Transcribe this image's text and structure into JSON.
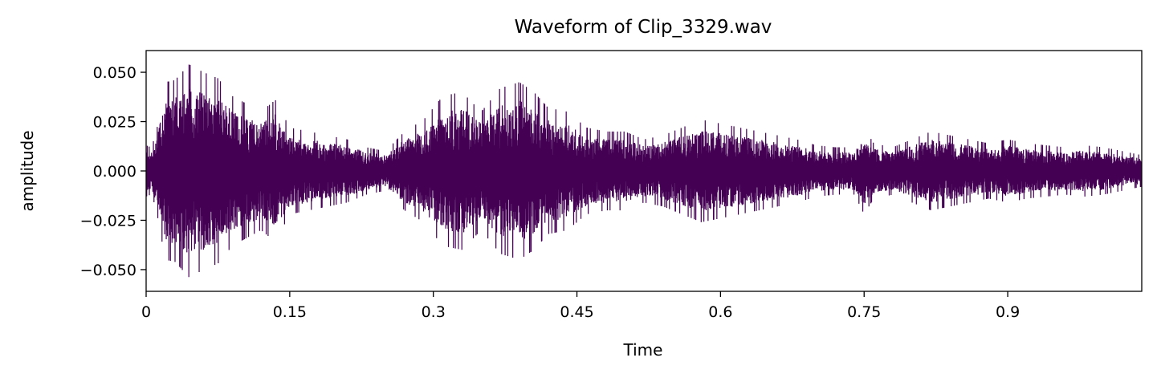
{
  "chart_data": {
    "type": "line",
    "title": "Waveform of Clip_3329.wav",
    "xlabel": "Time",
    "ylabel": "amplitude",
    "xlim": [
      0,
      1.04
    ],
    "ylim": [
      -0.061,
      0.061
    ],
    "x_ticks": [
      0,
      0.15,
      0.3,
      0.45,
      0.6,
      0.75,
      0.9
    ],
    "x_tick_labels": [
      "0",
      "0.15",
      "0.3",
      "0.45",
      "0.6",
      "0.75",
      "0.9"
    ],
    "y_ticks": [
      0.05,
      0.025,
      0.0,
      -0.025,
      -0.05
    ],
    "y_tick_labels": [
      "0.050",
      "0.025",
      "0.000",
      "−0.025",
      "−0.050"
    ],
    "grid": false,
    "legend": "none",
    "series_color": "#440154",
    "envelope": {
      "time": [
        0,
        0.005,
        0.01,
        0.02,
        0.03,
        0.045,
        0.06,
        0.075,
        0.09,
        0.105,
        0.12,
        0.135,
        0.15,
        0.17,
        0.19,
        0.21,
        0.23,
        0.25,
        0.27,
        0.29,
        0.31,
        0.33,
        0.35,
        0.37,
        0.39,
        0.405,
        0.42,
        0.44,
        0.46,
        0.48,
        0.5,
        0.52,
        0.54,
        0.56,
        0.58,
        0.6,
        0.62,
        0.64,
        0.66,
        0.68,
        0.7,
        0.72,
        0.74,
        0.75,
        0.76,
        0.78,
        0.8,
        0.82,
        0.84,
        0.86,
        0.88,
        0.9,
        0.92,
        0.94,
        0.96,
        0.98,
        1.0,
        1.02,
        1.04
      ],
      "peak": [
        0.013,
        0.012,
        0.018,
        0.045,
        0.046,
        0.054,
        0.05,
        0.047,
        0.038,
        0.034,
        0.03,
        0.036,
        0.022,
        0.02,
        0.018,
        0.016,
        0.012,
        0.01,
        0.02,
        0.026,
        0.038,
        0.04,
        0.03,
        0.042,
        0.045,
        0.04,
        0.032,
        0.03,
        0.022,
        0.02,
        0.02,
        0.016,
        0.018,
        0.022,
        0.026,
        0.024,
        0.022,
        0.02,
        0.018,
        0.016,
        0.013,
        0.012,
        0.012,
        0.022,
        0.014,
        0.012,
        0.016,
        0.02,
        0.018,
        0.016,
        0.014,
        0.016,
        0.014,
        0.013,
        0.012,
        0.013,
        0.012,
        0.01,
        0.008
      ]
    }
  }
}
